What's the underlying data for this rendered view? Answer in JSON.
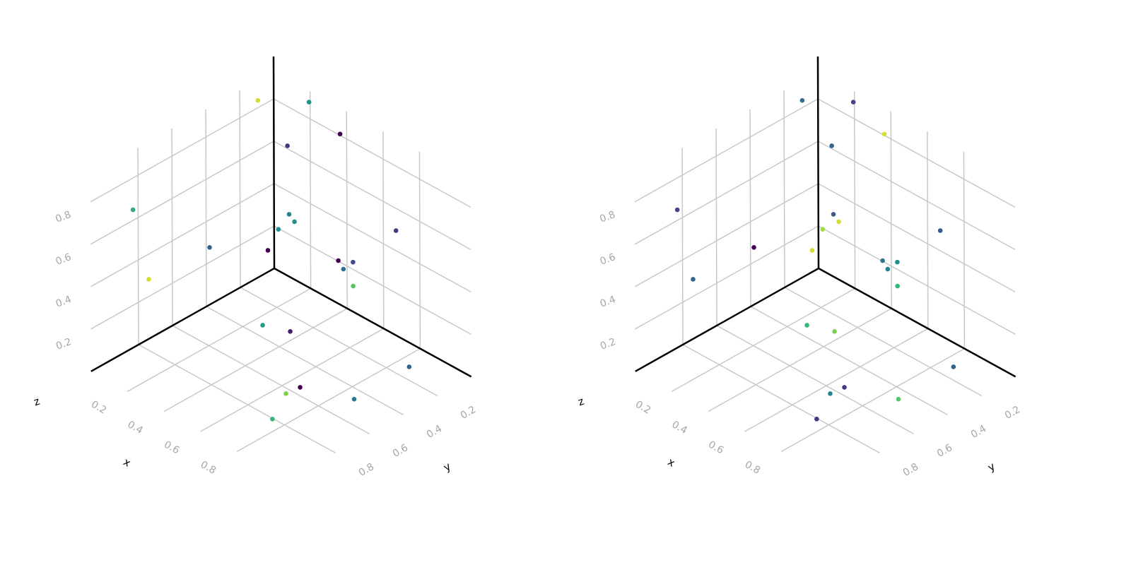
{
  "chart_data": [
    {
      "type": "scatter3d",
      "axes": {
        "x": {
          "label": "x",
          "ticks": [
            "0.2",
            "0.4",
            "0.6",
            "0.8"
          ],
          "range": [
            0,
            1
          ]
        },
        "y": {
          "label": "y",
          "ticks": [
            "0.2",
            "0.4",
            "0.6",
            "0.8"
          ],
          "range": [
            0,
            1
          ]
        },
        "z": {
          "label": "z",
          "ticks": [
            "0.2",
            "0.4",
            "0.6",
            "0.8"
          ],
          "range": [
            0,
            1
          ]
        }
      },
      "grid": true,
      "colormap": "viridis",
      "points": [
        {
          "x": 0.87,
          "y": 0.14,
          "z": 0.01,
          "c": 0.4
        },
        {
          "x": 0.12,
          "y": 0.04,
          "z": 0.33,
          "c": 0.55
        },
        {
          "x": 0.29,
          "y": 0.38,
          "z": 0.04,
          "c": 0.65
        },
        {
          "x": 0.65,
          "y": 0.63,
          "z": 0.0,
          "c": 0.85
        },
        {
          "x": 0.1,
          "y": 0.2,
          "z": 0.93,
          "c": 0.95
        },
        {
          "x": 0.42,
          "y": 0.06,
          "z": 0.86,
          "c": 0.0
        },
        {
          "x": 0.46,
          "y": 0.4,
          "z": 0.1,
          "c": 0.1
        },
        {
          "x": 0.79,
          "y": 0.86,
          "z": 0.05,
          "c": 0.75
        },
        {
          "x": 0.8,
          "y": 0.14,
          "z": 0.62,
          "c": 0.2
        },
        {
          "x": 0.02,
          "y": 0.76,
          "z": 0.3,
          "c": 0.95
        },
        {
          "x": 0.0,
          "y": 0.83,
          "z": 0.65,
          "c": 0.7
        },
        {
          "x": 0.07,
          "y": 0.05,
          "z": 0.24,
          "c": 0.6
        },
        {
          "x": 0.95,
          "y": 0.55,
          "z": 0.08,
          "c": 0.5
        },
        {
          "x": 0.25,
          "y": 0.06,
          "z": 0.93,
          "c": 0.6
        },
        {
          "x": 0.62,
          "y": 0.2,
          "z": 0.3,
          "c": 0.8
        },
        {
          "x": 0.38,
          "y": 0.03,
          "z": 0.23,
          "c": 0.0
        },
        {
          "x": 0.7,
          "y": 0.6,
          "z": 0.04,
          "c": 0.0
        },
        {
          "x": 0.52,
          "y": 0.15,
          "z": 0.31,
          "c": 0.45
        },
        {
          "x": 0.47,
          "y": 0.04,
          "z": 0.27,
          "c": 0.3
        },
        {
          "x": 0.04,
          "y": 0.08,
          "z": 0.14,
          "c": 0.0
        },
        {
          "x": 0.0,
          "y": 0.38,
          "z": 0.27,
          "c": 0.4
        },
        {
          "x": 0.14,
          "y": 0.03,
          "z": 0.3,
          "c": 0.6
        },
        {
          "x": 0.28,
          "y": 0.22,
          "z": 0.81,
          "c": 0.2
        }
      ]
    },
    {
      "type": "scatter3d",
      "axes": {
        "x": {
          "label": "x",
          "ticks": [
            "0.2",
            "0.4",
            "0.6",
            "0.8"
          ],
          "range": [
            0,
            1
          ]
        },
        "y": {
          "label": "y",
          "ticks": [
            "0.2",
            "0.4",
            "0.6",
            "0.8"
          ],
          "range": [
            0,
            1
          ]
        },
        "z": {
          "label": "z",
          "ticks": [
            "0.2",
            "0.4",
            "0.6",
            "0.8"
          ],
          "range": [
            0,
            1
          ]
        }
      },
      "grid": true,
      "colormap": "viridis",
      "points": [
        {
          "x": 0.87,
          "y": 0.14,
          "z": 0.01,
          "c": 0.4
        },
        {
          "x": 0.12,
          "y": 0.04,
          "z": 0.33,
          "c": 0.35
        },
        {
          "x": 0.29,
          "y": 0.38,
          "z": 0.04,
          "c": 0.75
        },
        {
          "x": 0.65,
          "y": 0.63,
          "z": 0.0,
          "c": 0.55
        },
        {
          "x": 0.1,
          "y": 0.2,
          "z": 0.93,
          "c": 0.45
        },
        {
          "x": 0.42,
          "y": 0.06,
          "z": 0.86,
          "c": 0.95
        },
        {
          "x": 0.46,
          "y": 0.4,
          "z": 0.1,
          "c": 0.85
        },
        {
          "x": 0.79,
          "y": 0.86,
          "z": 0.05,
          "c": 0.2
        },
        {
          "x": 0.8,
          "y": 0.14,
          "z": 0.62,
          "c": 0.35
        },
        {
          "x": 0.02,
          "y": 0.76,
          "z": 0.3,
          "c": 0.4
        },
        {
          "x": 0.0,
          "y": 0.83,
          "z": 0.65,
          "c": 0.25
        },
        {
          "x": 0.07,
          "y": 0.05,
          "z": 0.24,
          "c": 0.9
        },
        {
          "x": 0.95,
          "y": 0.55,
          "z": 0.08,
          "c": 0.8
        },
        {
          "x": 0.25,
          "y": 0.06,
          "z": 0.93,
          "c": 0.25
        },
        {
          "x": 0.62,
          "y": 0.2,
          "z": 0.3,
          "c": 0.75
        },
        {
          "x": 0.38,
          "y": 0.03,
          "z": 0.23,
          "c": 0.5
        },
        {
          "x": 0.7,
          "y": 0.6,
          "z": 0.04,
          "c": 0.2
        },
        {
          "x": 0.52,
          "y": 0.15,
          "z": 0.31,
          "c": 0.55
        },
        {
          "x": 0.47,
          "y": 0.04,
          "z": 0.27,
          "c": 0.6
        },
        {
          "x": 0.04,
          "y": 0.08,
          "z": 0.14,
          "c": 0.95
        },
        {
          "x": 0.0,
          "y": 0.38,
          "z": 0.27,
          "c": 0.0
        },
        {
          "x": 0.14,
          "y": 0.03,
          "z": 0.3,
          "c": 0.95
        },
        {
          "x": 0.28,
          "y": 0.22,
          "z": 0.81,
          "c": 0.4
        }
      ]
    }
  ]
}
